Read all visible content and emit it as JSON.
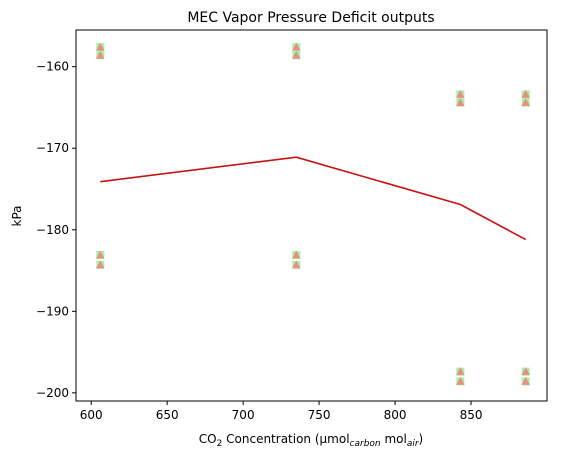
{
  "chart_data": {
    "type": "scatter+line",
    "title": "MEC Vapor Pressure Deficit outputs",
    "ylabel": "kPa",
    "xlabel": {
      "prefix": "CO",
      "prefix_sub": "2",
      "middle": " Concentration (µmol",
      "carbon_sub": "carbon",
      "mol_text": " mol",
      "air_sub": "air",
      "suffix": ")"
    },
    "xlim": [
      590,
      900
    ],
    "ylim": [
      -201,
      -155.5
    ],
    "xticks": [
      600,
      650,
      700,
      750,
      800,
      850
    ],
    "yticks": [
      -160,
      -170,
      -180,
      -190,
      -200
    ],
    "grid": false,
    "line_series": {
      "color": "#cc1111",
      "x": [
        606,
        735,
        843,
        886
      ],
      "y": [
        -174.1,
        -171.1,
        -176.9,
        -181.2
      ]
    },
    "scatter_series": [
      {
        "marker": "square",
        "color": "#90ee90",
        "x": [
          606,
          606,
          606,
          606,
          735,
          735,
          735,
          735,
          843,
          843,
          843,
          843,
          886,
          886,
          886,
          886
        ],
        "y": [
          -157.6,
          -158.6,
          -183.1,
          -184.3,
          -157.6,
          -158.6,
          -183.1,
          -184.3,
          -163.4,
          -164.4,
          -197.4,
          -198.6,
          -163.4,
          -164.4,
          -197.4,
          -198.6
        ]
      },
      {
        "marker": "triangle",
        "color": "#f08080",
        "x": [
          606,
          606,
          606,
          606,
          735,
          735,
          735,
          735,
          843,
          843,
          843,
          843,
          886,
          886,
          886,
          886
        ],
        "y": [
          -157.6,
          -158.6,
          -183.1,
          -184.3,
          -157.6,
          -158.6,
          -183.1,
          -184.3,
          -163.4,
          -164.4,
          -197.4,
          -198.6,
          -163.4,
          -164.4,
          -197.4,
          -198.6
        ]
      }
    ]
  }
}
